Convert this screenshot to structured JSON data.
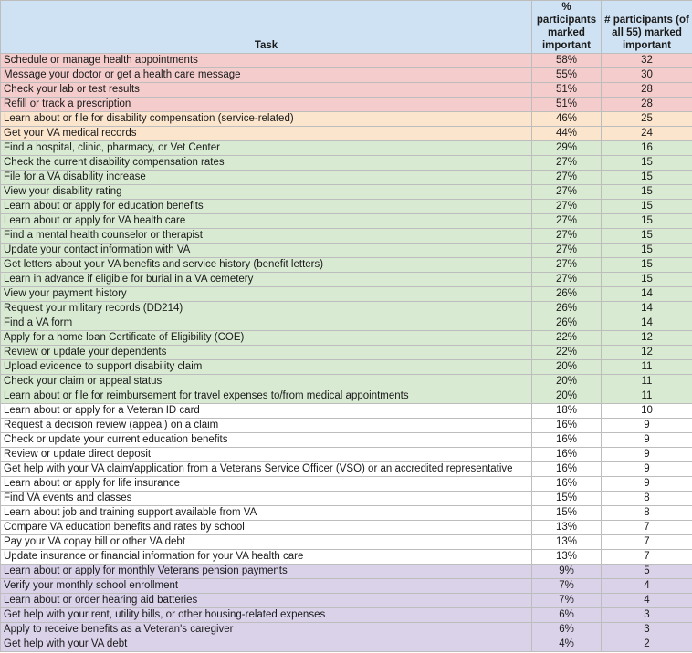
{
  "header": {
    "task": "Task",
    "pct": "% participants marked important",
    "num": "# participants (of all 55) marked important"
  },
  "tier_colors": {
    "red": "#f4cccc",
    "orange": "#fce5cd",
    "green": "#d9ead3",
    "white": "#ffffff",
    "purple": "#d9d2e9",
    "header": "#cfe2f3"
  },
  "rows": [
    {
      "task": "Schedule or manage health appointments",
      "pct": "58%",
      "num": "32",
      "tier": "red"
    },
    {
      "task": "Message your doctor or get a health care message",
      "pct": "55%",
      "num": "30",
      "tier": "red"
    },
    {
      "task": "Check your lab or test results",
      "pct": "51%",
      "num": "28",
      "tier": "red"
    },
    {
      "task": "Refill or track a prescription",
      "pct": "51%",
      "num": "28",
      "tier": "red"
    },
    {
      "task": "Learn about or file for disability compensation (service-related)",
      "pct": "46%",
      "num": "25",
      "tier": "orange"
    },
    {
      "task": "Get your VA medical records",
      "pct": "44%",
      "num": "24",
      "tier": "orange"
    },
    {
      "task": "Find a hospital, clinic, pharmacy, or Vet Center",
      "pct": "29%",
      "num": "16",
      "tier": "green"
    },
    {
      "task": "Check the current disability compensation rates",
      "pct": "27%",
      "num": "15",
      "tier": "green"
    },
    {
      "task": "File for a VA disability increase",
      "pct": "27%",
      "num": "15",
      "tier": "green"
    },
    {
      "task": "View your disability rating",
      "pct": "27%",
      "num": "15",
      "tier": "green"
    },
    {
      "task": "Learn about or apply for education benefits",
      "pct": "27%",
      "num": "15",
      "tier": "green"
    },
    {
      "task": "Learn about or apply for VA health care",
      "pct": "27%",
      "num": "15",
      "tier": "green"
    },
    {
      "task": "Find a mental health counselor or therapist",
      "pct": "27%",
      "num": "15",
      "tier": "green"
    },
    {
      "task": "Update your contact information with VA",
      "pct": "27%",
      "num": "15",
      "tier": "green"
    },
    {
      "task": "Get letters about your VA benefits and service history (benefit letters)",
      "pct": "27%",
      "num": "15",
      "tier": "green"
    },
    {
      "task": "Learn in advance if eligible for burial in a VA cemetery",
      "pct": "27%",
      "num": "15",
      "tier": "green"
    },
    {
      "task": "View your payment history",
      "pct": "26%",
      "num": "14",
      "tier": "green"
    },
    {
      "task": "Request your military records (DD214)",
      "pct": "26%",
      "num": "14",
      "tier": "green"
    },
    {
      "task": "Find a VA form",
      "pct": "26%",
      "num": "14",
      "tier": "green"
    },
    {
      "task": "Apply for a home loan Certificate of Eligibility (COE)",
      "pct": "22%",
      "num": "12",
      "tier": "green"
    },
    {
      "task": "Review or update your dependents",
      "pct": "22%",
      "num": "12",
      "tier": "green"
    },
    {
      "task": "Upload evidence to support disability claim",
      "pct": "20%",
      "num": "11",
      "tier": "green"
    },
    {
      "task": "Check your claim or appeal status",
      "pct": "20%",
      "num": "11",
      "tier": "green"
    },
    {
      "task": "Learn about or file for reimbursement for travel expenses to/from medical appointments",
      "pct": "20%",
      "num": "11",
      "tier": "green"
    },
    {
      "task": "Learn about or apply for a Veteran ID card",
      "pct": "18%",
      "num": "10",
      "tier": "white"
    },
    {
      "task": "Request a decision review (appeal) on a claim",
      "pct": "16%",
      "num": "9",
      "tier": "white"
    },
    {
      "task": "Check or update your current education benefits",
      "pct": "16%",
      "num": "9",
      "tier": "white"
    },
    {
      "task": "Review or update direct deposit",
      "pct": "16%",
      "num": "9",
      "tier": "white"
    },
    {
      "task": "Get help with your VA claim/application from a Veterans Service Officer (VSO) or an accredited representative",
      "pct": "16%",
      "num": "9",
      "tier": "white"
    },
    {
      "task": "Learn about or apply for life insurance",
      "pct": "16%",
      "num": "9",
      "tier": "white"
    },
    {
      "task": "Find VA events and classes",
      "pct": "15%",
      "num": "8",
      "tier": "white"
    },
    {
      "task": "Learn about job and training support available from VA",
      "pct": "15%",
      "num": "8",
      "tier": "white"
    },
    {
      "task": "Compare VA education benefits and rates by school",
      "pct": "13%",
      "num": "7",
      "tier": "white"
    },
    {
      "task": "Pay your VA copay bill or other VA debt",
      "pct": "13%",
      "num": "7",
      "tier": "white"
    },
    {
      "task": "Update insurance or financial information for your VA health care",
      "pct": "13%",
      "num": "7",
      "tier": "white"
    },
    {
      "task": "Learn about or apply for monthly Veterans pension payments",
      "pct": "9%",
      "num": "5",
      "tier": "purple"
    },
    {
      "task": "Verify your monthly school enrollment",
      "pct": "7%",
      "num": "4",
      "tier": "purple"
    },
    {
      "task": "Learn about or order hearing aid batteries",
      "pct": "7%",
      "num": "4",
      "tier": "purple"
    },
    {
      "task": "Get help with your rent, utility bills, or other housing-related expenses",
      "pct": "6%",
      "num": "3",
      "tier": "purple"
    },
    {
      "task": "Apply to receive benefits as a Veteran's caregiver",
      "pct": "6%",
      "num": "3",
      "tier": "purple"
    },
    {
      "task": "Get help with your VA debt",
      "pct": "4%",
      "num": "2",
      "tier": "purple"
    }
  ]
}
